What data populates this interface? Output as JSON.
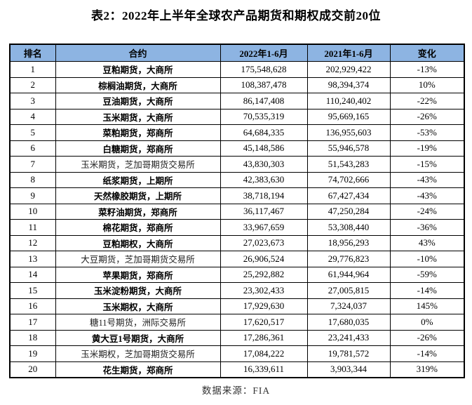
{
  "title": "表2：2022年上半年全球农产品期货和期权成交前20位",
  "source": "数据来源：FIA",
  "colors": {
    "header_bg": "#8DB4E2",
    "border": "#000000"
  },
  "table": {
    "headers": [
      "排名",
      "合约",
      "2022年1-6月",
      "2021年1-6月",
      "变化"
    ],
    "rows": [
      {
        "rank": "1",
        "contract": "豆粕期货，大商所",
        "v2022": "175,548,628",
        "v2021": "202,929,422",
        "change": "-13%",
        "foreign": false
      },
      {
        "rank": "2",
        "contract": "棕榈油期货，大商所",
        "v2022": "108,387,478",
        "v2021": "98,394,374",
        "change": "10%",
        "foreign": false
      },
      {
        "rank": "3",
        "contract": "豆油期货，大商所",
        "v2022": "86,147,408",
        "v2021": "110,240,402",
        "change": "-22%",
        "foreign": false
      },
      {
        "rank": "4",
        "contract": "玉米期货，大商所",
        "v2022": "70,535,319",
        "v2021": "95,669,165",
        "change": "-26%",
        "foreign": false
      },
      {
        "rank": "5",
        "contract": "菜粕期货，郑商所",
        "v2022": "64,684,335",
        "v2021": "136,955,603",
        "change": "-53%",
        "foreign": false
      },
      {
        "rank": "6",
        "contract": "白糖期货，郑商所",
        "v2022": "45,148,586",
        "v2021": "55,946,578",
        "change": "-19%",
        "foreign": false
      },
      {
        "rank": "7",
        "contract": "玉米期货，芝加哥期货交易所",
        "v2022": "43,830,303",
        "v2021": "51,543,283",
        "change": "-15%",
        "foreign": true
      },
      {
        "rank": "8",
        "contract": "纸浆期货，上期所",
        "v2022": "42,383,630",
        "v2021": "74,702,666",
        "change": "-43%",
        "foreign": false
      },
      {
        "rank": "9",
        "contract": "天然橡胶期货，上期所",
        "v2022": "38,718,194",
        "v2021": "67,427,434",
        "change": "-43%",
        "foreign": false
      },
      {
        "rank": "10",
        "contract": "菜籽油期货，郑商所",
        "v2022": "36,117,467",
        "v2021": "47,250,284",
        "change": "-24%",
        "foreign": false
      },
      {
        "rank": "11",
        "contract": "棉花期货，郑商所",
        "v2022": "33,967,659",
        "v2021": "53,308,440",
        "change": "-36%",
        "foreign": false
      },
      {
        "rank": "12",
        "contract": "豆粕期权，大商所",
        "v2022": "27,023,673",
        "v2021": "18,956,293",
        "change": "43%",
        "foreign": false
      },
      {
        "rank": "13",
        "contract": "大豆期货，芝加哥期货交易所",
        "v2022": "26,906,524",
        "v2021": "29,776,823",
        "change": "-10%",
        "foreign": true
      },
      {
        "rank": "14",
        "contract": "苹果期货，郑商所",
        "v2022": "25,292,882",
        "v2021": "61,944,964",
        "change": "-59%",
        "foreign": false
      },
      {
        "rank": "15",
        "contract": "玉米淀粉期货，大商所",
        "v2022": "23,302,433",
        "v2021": "27,005,815",
        "change": "-14%",
        "foreign": false
      },
      {
        "rank": "16",
        "contract": "玉米期权，大商所",
        "v2022": "17,929,630",
        "v2021": "7,324,037",
        "change": "145%",
        "foreign": false
      },
      {
        "rank": "17",
        "contract": "糖11号期货，洲际交易所",
        "v2022": "17,620,517",
        "v2021": "17,680,035",
        "change": "0%",
        "foreign": true
      },
      {
        "rank": "18",
        "contract": "黄大豆1号期货，大商所",
        "v2022": "17,286,361",
        "v2021": "23,241,433",
        "change": "-26%",
        "foreign": false
      },
      {
        "rank": "19",
        "contract": "玉米期权，芝加哥期货交易所",
        "v2022": "17,084,222",
        "v2021": "19,781,572",
        "change": "-14%",
        "foreign": true
      },
      {
        "rank": "20",
        "contract": "花生期货，郑商所",
        "v2022": "16,339,611",
        "v2021": "3,903,344",
        "change": "319%",
        "foreign": false
      }
    ]
  }
}
